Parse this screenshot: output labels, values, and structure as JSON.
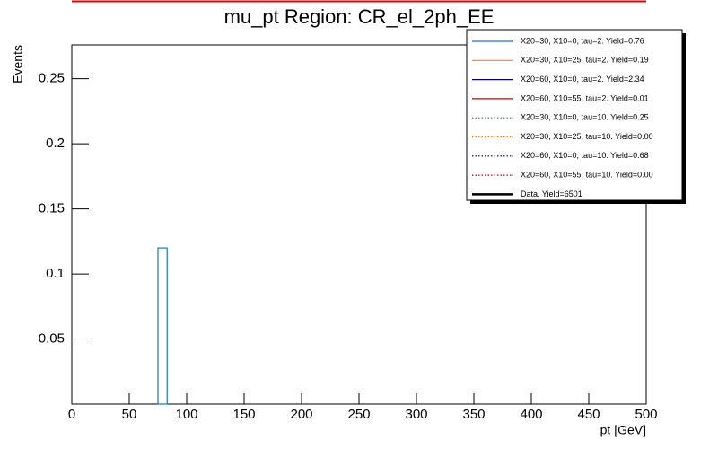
{
  "chart_data": {
    "type": "histogram",
    "title": "mu_pt Region: CR_el_2ph_EE",
    "xlabel": "pt [GeV]",
    "ylabel": "Events",
    "bins": [
      75,
      83
    ],
    "values": [
      0.12
    ],
    "color": "#1f77b4",
    "xlim": [
      0,
      500
    ],
    "xticks": [
      0,
      50,
      100,
      150,
      200,
      250,
      300,
      350,
      400,
      450,
      500
    ],
    "ylim": [
      0,
      0.276
    ],
    "yticks": [
      0.05,
      0.1,
      0.15,
      0.2,
      0.25
    ],
    "legend": [
      {
        "name": "X20=30, X10=0, tau=2. Yield=0.76",
        "color": "#1f77b4",
        "style": "solid"
      },
      {
        "name": "X20=30, X10=25, tau=2. Yield=0.19",
        "color": "#ff7f0e",
        "style": "solid"
      },
      {
        "name": "X20=60, X10=0, tau=2. Yield=2.34",
        "color": "#000080",
        "style": "solid"
      },
      {
        "name": "X20=60, X10=55, tau=2. Yield=0.01",
        "color": "#cc0000",
        "style": "solid"
      },
      {
        "name": "X20=30, X10=0, tau=10. Yield=0.25",
        "color": "#1f77b4",
        "style": "dotted"
      },
      {
        "name": "X20=30, X10=25, tau=10. Yield=0.00",
        "color": "#ff7f0e",
        "style": "dotted"
      },
      {
        "name": "X20=60, X10=0, tau=10. Yield=0.68",
        "color": "#000080",
        "style": "dotted"
      },
      {
        "name": "X20=60, X10=55, tau=10. Yield=0.00",
        "color": "#cc0000",
        "style": "dotted"
      },
      {
        "name": "Data. Yield=6501",
        "color": "#000000",
        "style": "thick"
      }
    ]
  }
}
